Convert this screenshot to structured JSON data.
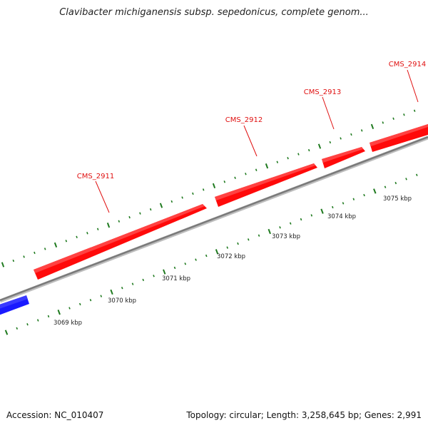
{
  "title": "Clavibacter michiganensis subsp. sepedonicus, complete genom...",
  "footer": {
    "accession": "Accession: NC_010407",
    "summary": "Topology: circular; Length: 3,258,645 bp; Genes: 2,991"
  },
  "colors": {
    "forward_gene": "#ff0a0a",
    "reverse_gene": "#1a1aff",
    "backbone": "#8c8c8c",
    "ticks": "#1f7a1f",
    "gene_label": "#e01010"
  },
  "genes": [
    {
      "name": "CMS_2911",
      "strand": "+"
    },
    {
      "name": "CMS_2912",
      "strand": "+"
    },
    {
      "name": "CMS_2913",
      "strand": "+"
    },
    {
      "name": "CMS_2914",
      "strand": "+"
    }
  ],
  "scale_labels": [
    "3069 kbp",
    "3070 kbp",
    "3071 kbp",
    "3072 kbp",
    "3073 kbp",
    "3074 kbp",
    "3075 kbp"
  ]
}
